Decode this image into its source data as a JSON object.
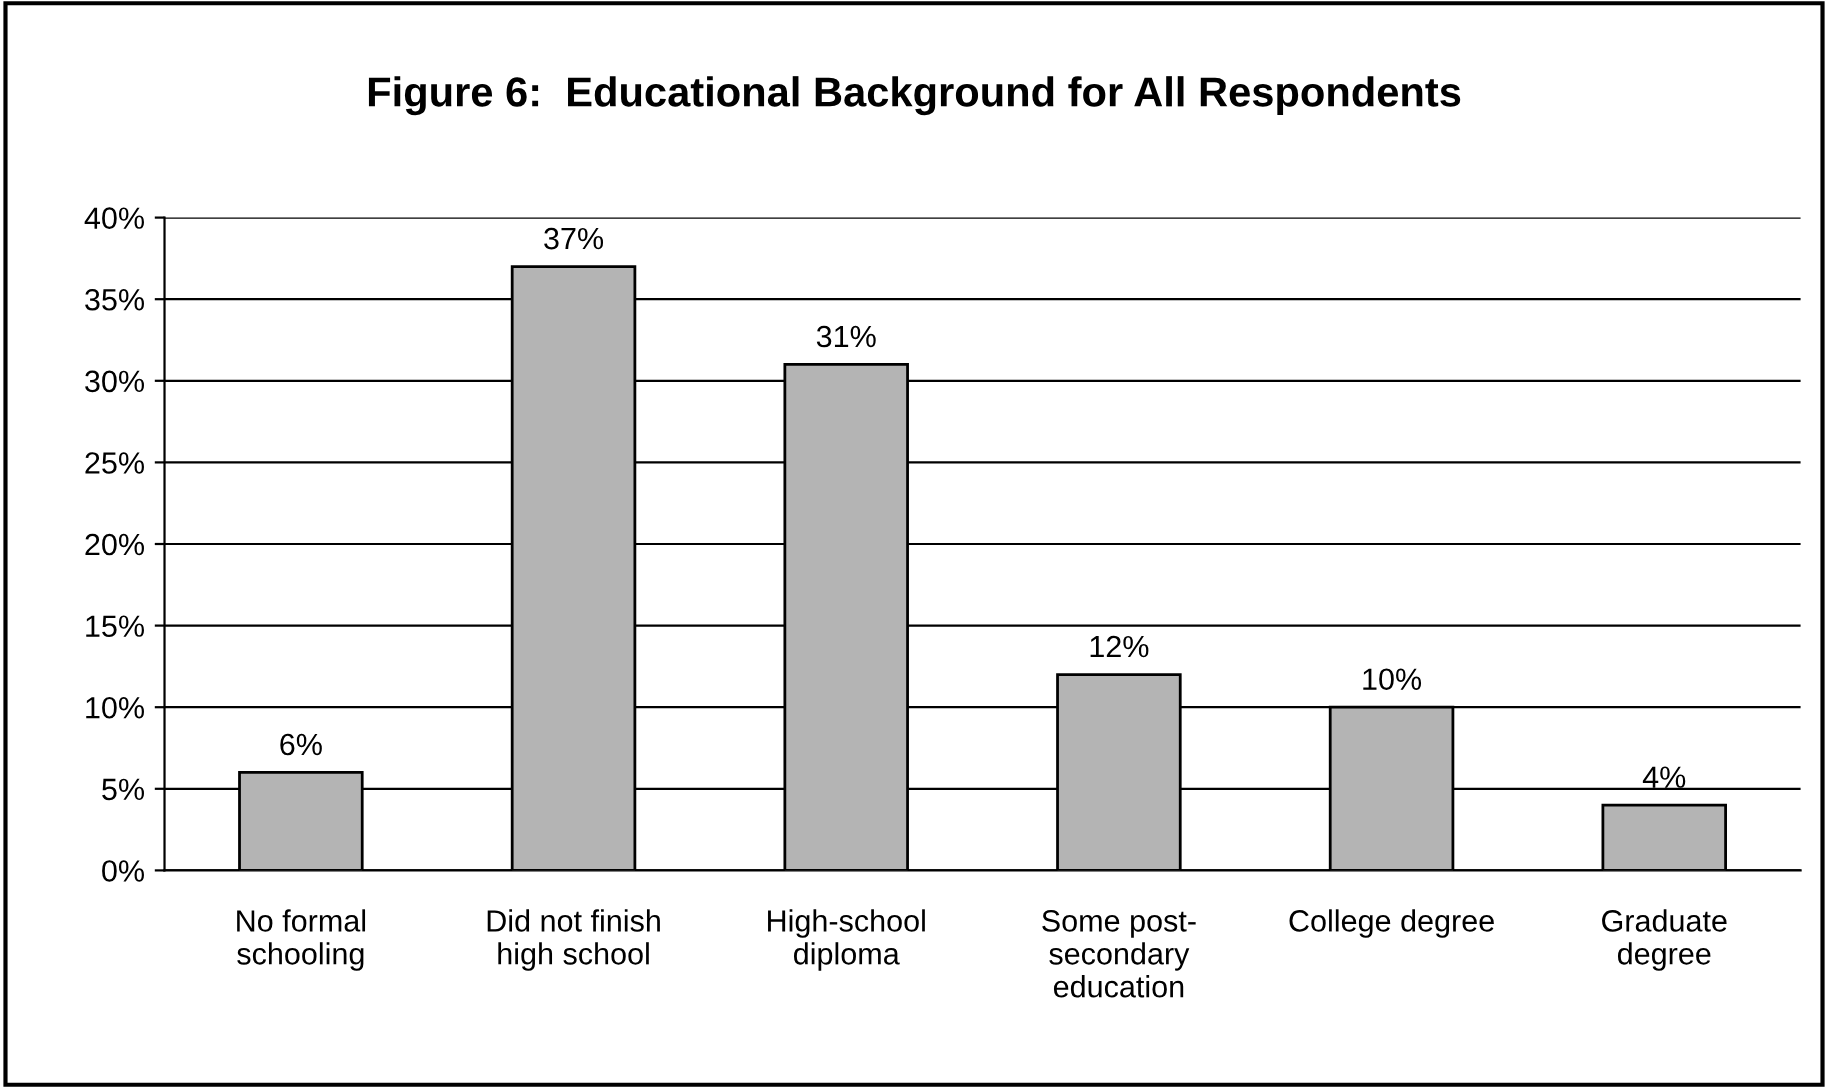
{
  "chart_data": {
    "type": "bar",
    "title": "Figure 6:  Educational Background for All Respondents",
    "categories": [
      "No formal\nschooling",
      "Did not finish\nhigh school",
      "High-school\ndiploma",
      "Some post-\nsecondary\neducation",
      "College degree",
      "Graduate\ndegree"
    ],
    "values": [
      6,
      37,
      31,
      12,
      10,
      4
    ],
    "color": "#b4b4b4",
    "data_labels": true,
    "value_labels": [
      "6%",
      "37%",
      "31%",
      "12%",
      "10%",
      "4%"
    ],
    "ylim": [
      0,
      40
    ],
    "yticks": [
      {
        "value": 0,
        "label": "0%"
      },
      {
        "value": 5,
        "label": "5%"
      },
      {
        "value": 10,
        "label": "10%"
      },
      {
        "value": 15,
        "label": "15%"
      },
      {
        "value": 20,
        "label": "20%"
      },
      {
        "value": 25,
        "label": "25%"
      },
      {
        "value": 30,
        "label": "30%"
      },
      {
        "value": 35,
        "label": "35%"
      },
      {
        "value": 40,
        "label": "40%"
      }
    ],
    "grid": "y"
  }
}
